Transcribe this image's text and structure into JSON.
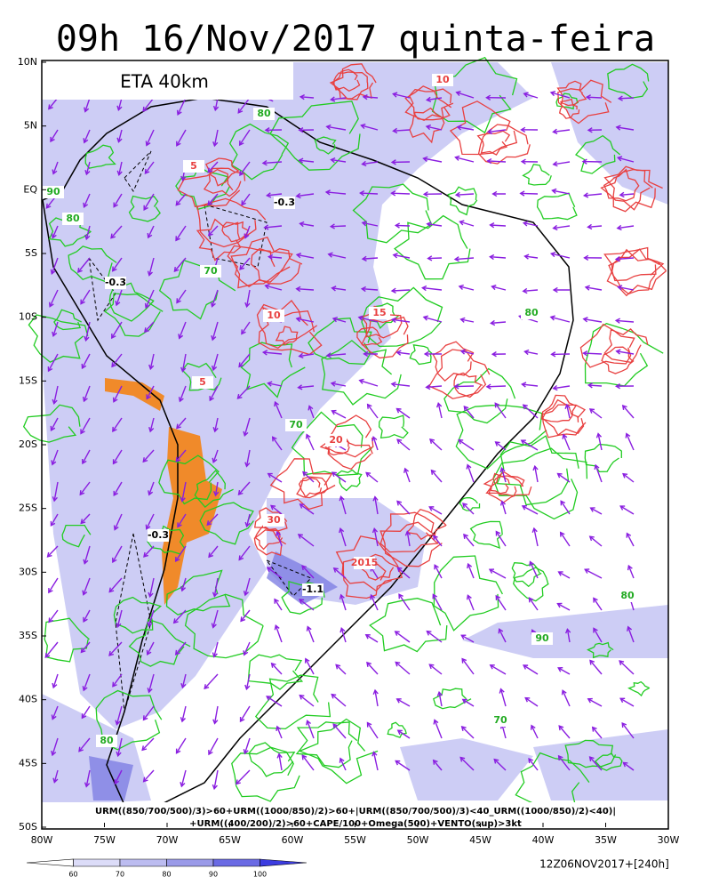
{
  "title": "09h 16/Nov/2017 quinta-feira",
  "model": "ETA 40km",
  "lat_labels": [
    "10N",
    "5N",
    "EQ",
    "5S",
    "10S",
    "15S",
    "20S",
    "25S",
    "30S",
    "35S",
    "40S",
    "45S",
    "50S"
  ],
  "lon_labels": [
    "80W",
    "75W",
    "70W",
    "65W",
    "60W",
    "55W",
    "50W",
    "45W",
    "40W",
    "35W",
    "30W"
  ],
  "legend_text": [
    "URM((850/700/500)/3)>60+URM((1000/850)/2)>60+|URM((850/700/500)/3)<40_URM((1000/850)/2)<40)|",
    "+URM((400/200)/2)>60+CAPE/100+Omega(500)+VENTO(sup)>3kt"
  ],
  "contour_labels": [
    "-0.3",
    "-0.3",
    "70",
    "80",
    "90",
    "80",
    "10",
    "15",
    "5",
    "20",
    "30",
    "-1.1",
    "2015",
    "80",
    "90",
    "70",
    "80",
    "-0.3",
    "10",
    "5",
    "70",
    "80"
  ],
  "colorbar": {
    "labels": [
      "60",
      "70",
      "80",
      "90",
      "100"
    ]
  },
  "footer": "12Z06NOV2017+[240h]"
}
